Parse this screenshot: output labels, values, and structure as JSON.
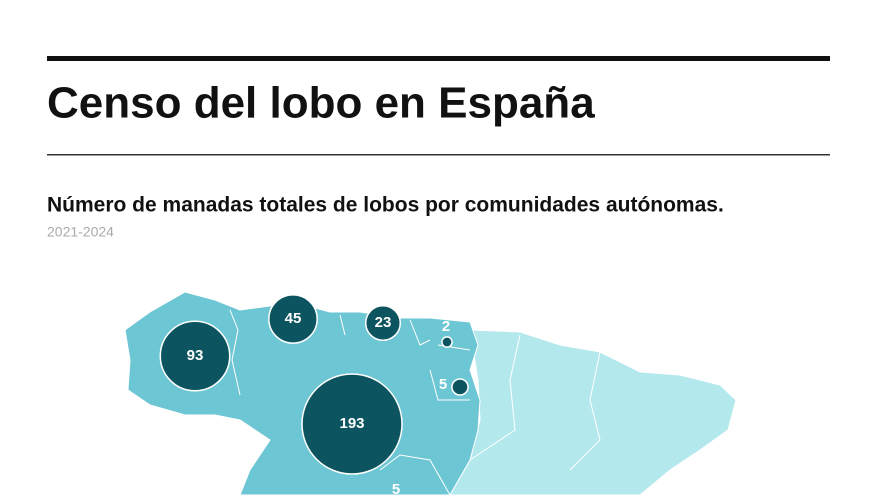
{
  "header": {
    "title": "Censo del lobo en España",
    "subtitle": "Número de manadas totales de lobos por comunidades autónomas.",
    "period": "2021-2024"
  },
  "map": {
    "bubbles": [
      {
        "value": 93
      },
      {
        "value": 45
      },
      {
        "value": 23
      },
      {
        "value": 2
      },
      {
        "value": 5
      },
      {
        "value": 193
      },
      {
        "value": 5
      }
    ]
  }
}
